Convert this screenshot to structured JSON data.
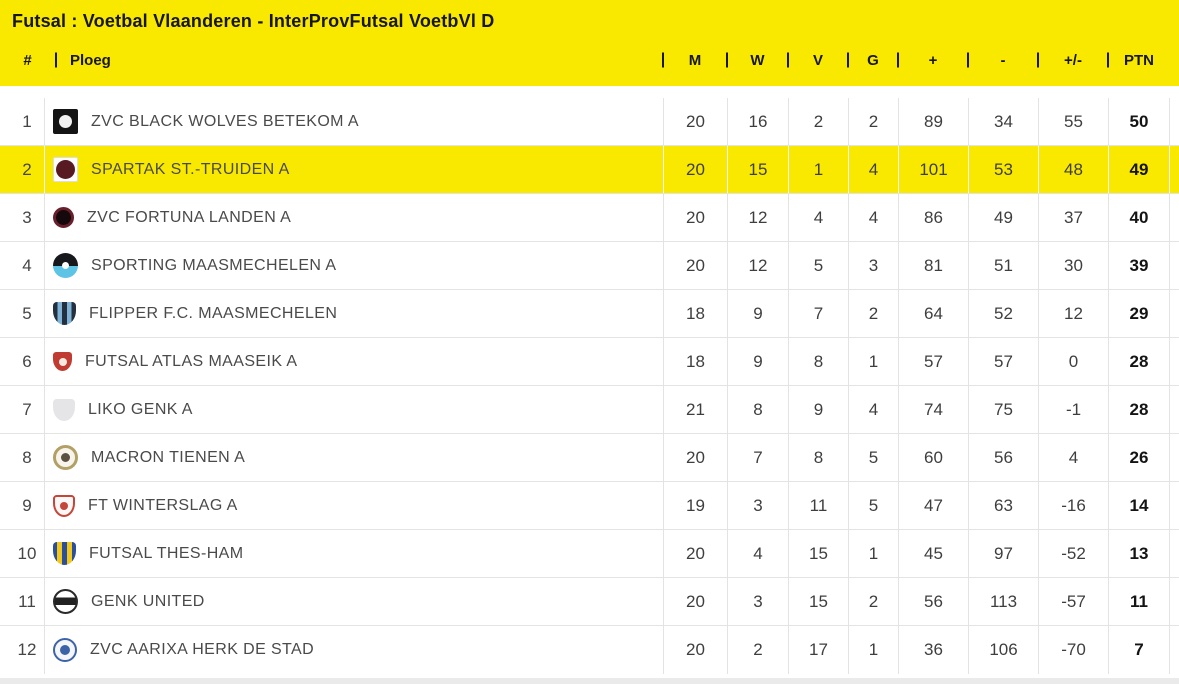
{
  "title": "Futsal : Voetbal Vlaanderen - InterProvFutsal VoetbVl D",
  "colors": {
    "accent_yellow": "#f9e800",
    "highlight_row": "#f9e800",
    "divider_gray": "#e3e3e3",
    "text_dark": "#171717",
    "text_team": "#4a4a4a"
  },
  "table": {
    "headers": {
      "rank": "#",
      "team": "Ploeg",
      "stats": [
        "M",
        "W",
        "V",
        "G",
        "+",
        "-",
        "+/-",
        "PTN"
      ]
    },
    "stat_keys": [
      "matches",
      "wins",
      "losses",
      "draws",
      "goals-for",
      "goals-against",
      "goal-diff",
      "points"
    ],
    "rows": [
      {
        "rank": 1,
        "team": "ZVC BLACK WOLVES BETEKOM A",
        "highlighted": false,
        "logo": {
          "shape": "square",
          "bg": "#141414",
          "inner": "#f2f2f2",
          "inner_size": 13
        },
        "stats": [
          20,
          16,
          2,
          2,
          89,
          34,
          55,
          50
        ]
      },
      {
        "rank": 2,
        "team": "SPARTAK ST.-TRUIDEN A",
        "highlighted": true,
        "logo": {
          "shape": "square",
          "bg": "#fdfdfd",
          "border": "1px solid #dedede",
          "inner": "#571a22",
          "inner_size": 19
        },
        "stats": [
          20,
          15,
          1,
          4,
          101,
          53,
          48,
          49
        ]
      },
      {
        "rank": 3,
        "team": "ZVC FORTUNA LANDEN A",
        "highlighted": false,
        "logo": {
          "shape": "circle",
          "bg": "#16090c",
          "border": "3px solid #67202b",
          "size": 21
        },
        "stats": [
          20,
          12,
          4,
          4,
          86,
          49,
          37,
          40
        ]
      },
      {
        "rank": 4,
        "team": "SPORTING MAASMECHELEN A",
        "highlighted": false,
        "logo": {
          "shape": "circle",
          "bg": "linear-gradient(180deg,#17181c 0%,#17181c 52%,#5ec4e6 52%,#5ec4e6 100%)",
          "inner": "#ffffff",
          "inner_size": 7
        },
        "stats": [
          20,
          12,
          5,
          3,
          81,
          51,
          30,
          39
        ]
      },
      {
        "rank": 5,
        "team": "FLIPPER F.C. MAASMECHELEN",
        "highlighted": false,
        "logo": {
          "shape": "shield",
          "bg": "linear-gradient(90deg,#23303d 0%,#23303d 20%,#7fb2d4 20%,#7fb2d4 40%,#23303d 40%,#23303d 60%,#7fb2d4 60%,#7fb2d4 80%,#23303d 80%,#23303d 100%)",
          "size": 23
        },
        "stats": [
          18,
          9,
          7,
          2,
          64,
          52,
          12,
          29
        ]
      },
      {
        "rank": 6,
        "team": "FUTSAL ATLAS MAASEIK A",
        "highlighted": false,
        "logo": {
          "shape": "shield",
          "bg": "#c03b31",
          "inner": "#f5e9e0",
          "inner_size": 8,
          "size": 19
        },
        "stats": [
          18,
          9,
          8,
          1,
          57,
          57,
          0,
          28
        ]
      },
      {
        "rank": 7,
        "team": "LIKO GENK A",
        "highlighted": false,
        "logo": {
          "shape": "shield",
          "bg": "#e5e5e7",
          "size": 22
        },
        "stats": [
          21,
          8,
          9,
          4,
          74,
          75,
          -1,
          28
        ]
      },
      {
        "rank": 8,
        "team": "MACRON TIENEN A",
        "highlighted": false,
        "logo": {
          "shape": "circle",
          "bg": "#f7f4ec",
          "border": "3px solid #b2a066",
          "inner": "#5a5142",
          "inner_size": 9
        },
        "stats": [
          20,
          7,
          8,
          5,
          60,
          56,
          4,
          26
        ]
      },
      {
        "rank": 9,
        "team": "FT WINTERSLAG A",
        "highlighted": false,
        "logo": {
          "shape": "shield",
          "bg": "#faf7f4",
          "border": "2px solid #c5453c",
          "inner": "#c5453c",
          "inner_size": 8,
          "size": 22
        },
        "stats": [
          19,
          3,
          11,
          5,
          47,
          63,
          -16,
          14
        ]
      },
      {
        "rank": 10,
        "team": "FUTSAL THES-HAM",
        "highlighted": false,
        "logo": {
          "shape": "shield",
          "bg": "linear-gradient(90deg,#2c4f9b 0%,#2c4f9b 18%,#f3c81e 18%,#f3c81e 40%,#2c4f9b 40%,#2c4f9b 60%,#f3c81e 60%,#f3c81e 82%,#2c4f9b 82%,#2c4f9b 100%)",
          "size": 23
        },
        "stats": [
          20,
          4,
          15,
          1,
          45,
          97,
          -52,
          13
        ]
      },
      {
        "rank": 11,
        "team": "GENK UNITED",
        "highlighted": false,
        "logo": {
          "shape": "circle",
          "bg": "linear-gradient(180deg,#ffffff 0%,#ffffff 32%,#222222 32%,#222222 66%,#ffffff 66%,#ffffff 100%)",
          "border": "2px solid #2a2a2a"
        },
        "stats": [
          20,
          3,
          15,
          2,
          56,
          113,
          -57,
          11
        ]
      },
      {
        "rank": 12,
        "team": "ZVC AARIXA HERK DE STAD",
        "highlighted": false,
        "logo": {
          "shape": "circle",
          "bg": "#f4f6fa",
          "border": "2px solid #3c63a8",
          "inner": "#3c63a8",
          "inner_size": 10,
          "size": 24
        },
        "stats": [
          20,
          2,
          17,
          1,
          36,
          106,
          -70,
          7
        ]
      }
    ]
  }
}
